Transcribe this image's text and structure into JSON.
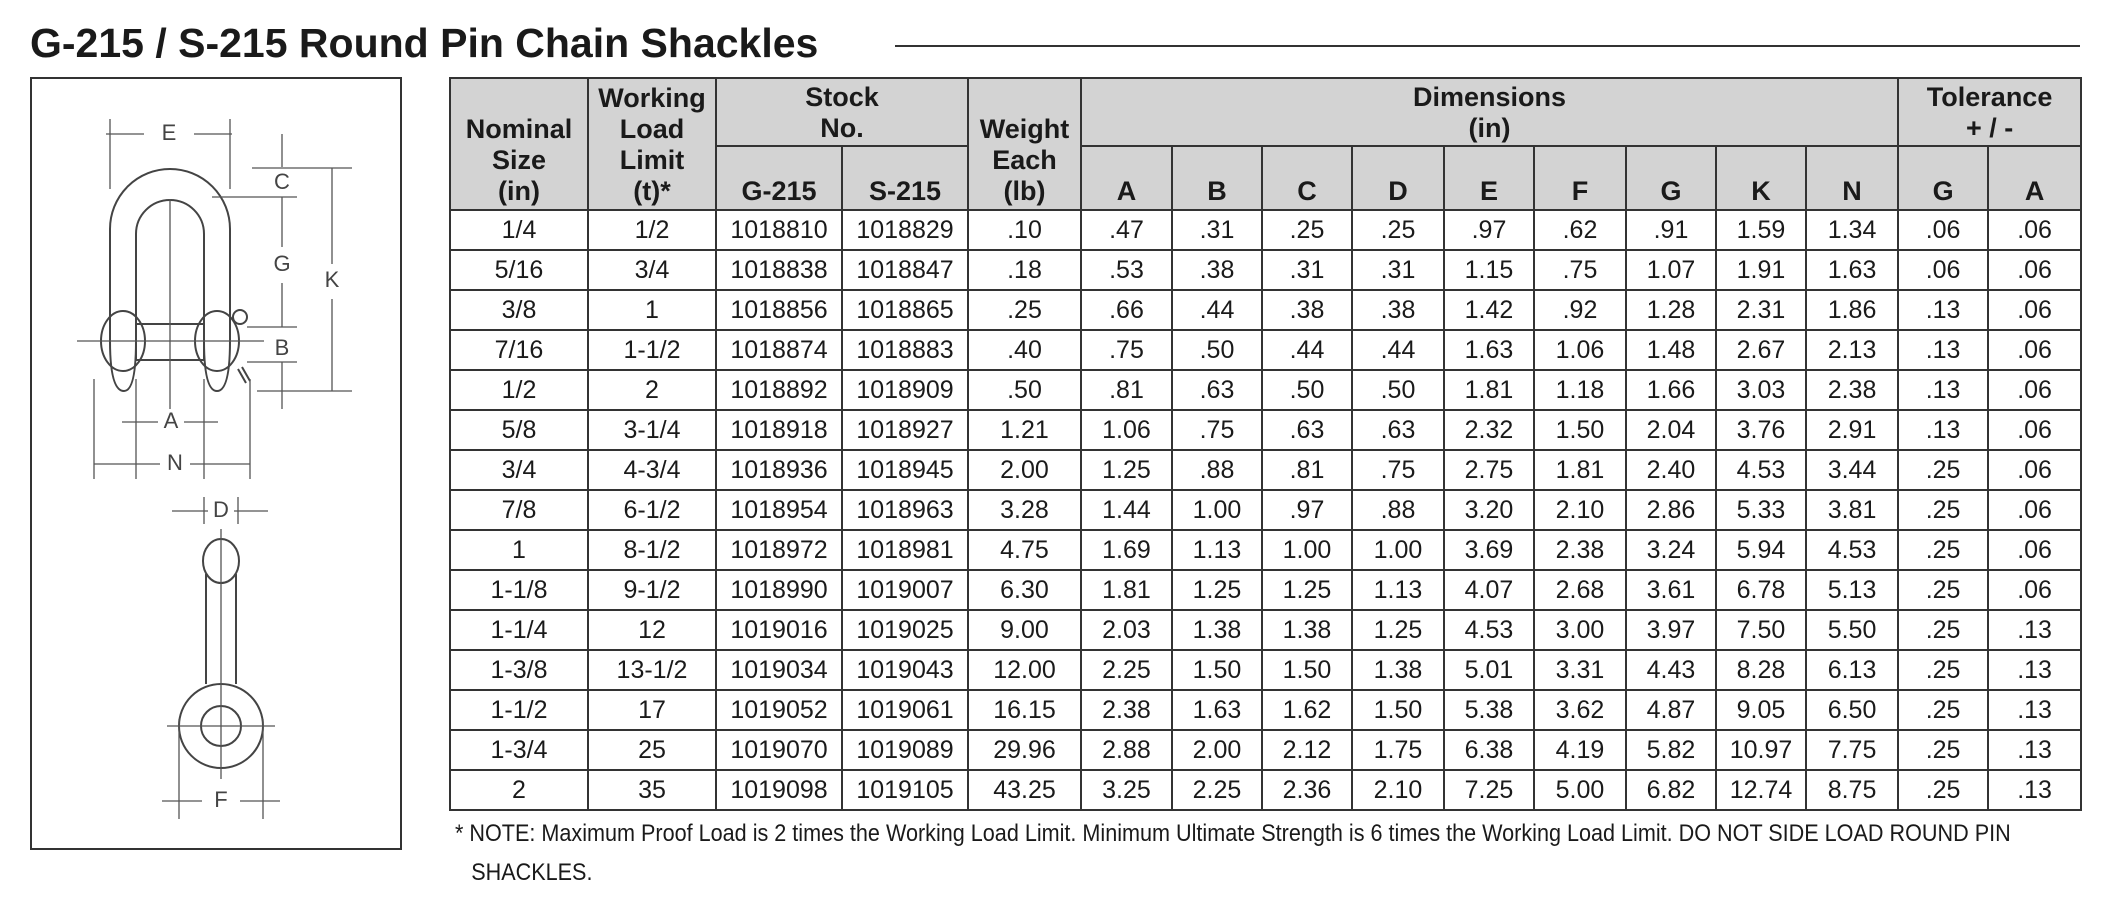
{
  "title": "G-215 / S-215 Round Pin Chain Shackles",
  "diagram": {
    "labels": [
      "E",
      "C",
      "G",
      "K",
      "B",
      "A",
      "N",
      "D",
      "F"
    ]
  },
  "table": {
    "headers": {
      "nominal_size": "Nominal\nSize\n(in)",
      "working_load_limit": "Working\nLoad\nLimit\n(t)*",
      "stock_no": "Stock\nNo.",
      "weight_each": "Weight\nEach\n(lb)",
      "dimensions": "Dimensions\n(in)",
      "tolerance": "Tolerance\n+ / -",
      "stock_columns": [
        "G-215",
        "S-215"
      ],
      "dimension_columns": [
        "A",
        "B",
        "C",
        "D",
        "E",
        "F",
        "G",
        "K",
        "N"
      ],
      "tolerance_columns": [
        "G",
        "A"
      ]
    },
    "rows": [
      [
        "1/4",
        "1/2",
        "1018810",
        "1018829",
        ".10",
        ".47",
        ".31",
        ".25",
        ".25",
        ".97",
        ".62",
        ".91",
        "1.59",
        "1.34",
        ".06",
        ".06"
      ],
      [
        "5/16",
        "3/4",
        "1018838",
        "1018847",
        ".18",
        ".53",
        ".38",
        ".31",
        ".31",
        "1.15",
        ".75",
        "1.07",
        "1.91",
        "1.63",
        ".06",
        ".06"
      ],
      [
        "3/8",
        "1",
        "1018856",
        "1018865",
        ".25",
        ".66",
        ".44",
        ".38",
        ".38",
        "1.42",
        ".92",
        "1.28",
        "2.31",
        "1.86",
        ".13",
        ".06"
      ],
      [
        "7/16",
        "1-1/2",
        "1018874",
        "1018883",
        ".40",
        ".75",
        ".50",
        ".44",
        ".44",
        "1.63",
        "1.06",
        "1.48",
        "2.67",
        "2.13",
        ".13",
        ".06"
      ],
      [
        "1/2",
        "2",
        "1018892",
        "1018909",
        ".50",
        ".81",
        ".63",
        ".50",
        ".50",
        "1.81",
        "1.18",
        "1.66",
        "3.03",
        "2.38",
        ".13",
        ".06"
      ],
      [
        "5/8",
        "3-1/4",
        "1018918",
        "1018927",
        "1.21",
        "1.06",
        ".75",
        ".63",
        ".63",
        "2.32",
        "1.50",
        "2.04",
        "3.76",
        "2.91",
        ".13",
        ".06"
      ],
      [
        "3/4",
        "4-3/4",
        "1018936",
        "1018945",
        "2.00",
        "1.25",
        ".88",
        ".81",
        ".75",
        "2.75",
        "1.81",
        "2.40",
        "4.53",
        "3.44",
        ".25",
        ".06"
      ],
      [
        "7/8",
        "6-1/2",
        "1018954",
        "1018963",
        "3.28",
        "1.44",
        "1.00",
        ".97",
        ".88",
        "3.20",
        "2.10",
        "2.86",
        "5.33",
        "3.81",
        ".25",
        ".06"
      ],
      [
        "1",
        "8-1/2",
        "1018972",
        "1018981",
        "4.75",
        "1.69",
        "1.13",
        "1.00",
        "1.00",
        "3.69",
        "2.38",
        "3.24",
        "5.94",
        "4.53",
        ".25",
        ".06"
      ],
      [
        "1-1/8",
        "9-1/2",
        "1018990",
        "1019007",
        "6.30",
        "1.81",
        "1.25",
        "1.25",
        "1.13",
        "4.07",
        "2.68",
        "3.61",
        "6.78",
        "5.13",
        ".25",
        ".06"
      ],
      [
        "1-1/4",
        "12",
        "1019016",
        "1019025",
        "9.00",
        "2.03",
        "1.38",
        "1.38",
        "1.25",
        "4.53",
        "3.00",
        "3.97",
        "7.50",
        "5.50",
        ".25",
        ".13"
      ],
      [
        "1-3/8",
        "13-1/2",
        "1019034",
        "1019043",
        "12.00",
        "2.25",
        "1.50",
        "1.50",
        "1.38",
        "5.01",
        "3.31",
        "4.43",
        "8.28",
        "6.13",
        ".25",
        ".13"
      ],
      [
        "1-1/2",
        "17",
        "1019052",
        "1019061",
        "16.15",
        "2.38",
        "1.63",
        "1.62",
        "1.50",
        "5.38",
        "3.62",
        "4.87",
        "9.05",
        "6.50",
        ".25",
        ".13"
      ],
      [
        "1-3/4",
        "25",
        "1019070",
        "1019089",
        "29.96",
        "2.88",
        "2.00",
        "2.12",
        "1.75",
        "6.38",
        "4.19",
        "5.82",
        "10.97",
        "7.75",
        ".25",
        ".13"
      ],
      [
        "2",
        "35",
        "1019098",
        "1019105",
        "43.25",
        "3.25",
        "2.25",
        "2.36",
        "2.10",
        "7.25",
        "5.00",
        "6.82",
        "12.74",
        "8.75",
        ".25",
        ".13"
      ]
    ]
  },
  "note": "* NOTE: Maximum Proof Load is 2 times the Working Load Limit.  Minimum Ultimate Strength is 6 times the Working Load Limit.  DO NOT SIDE LOAD ROUND PIN SHACKLES."
}
